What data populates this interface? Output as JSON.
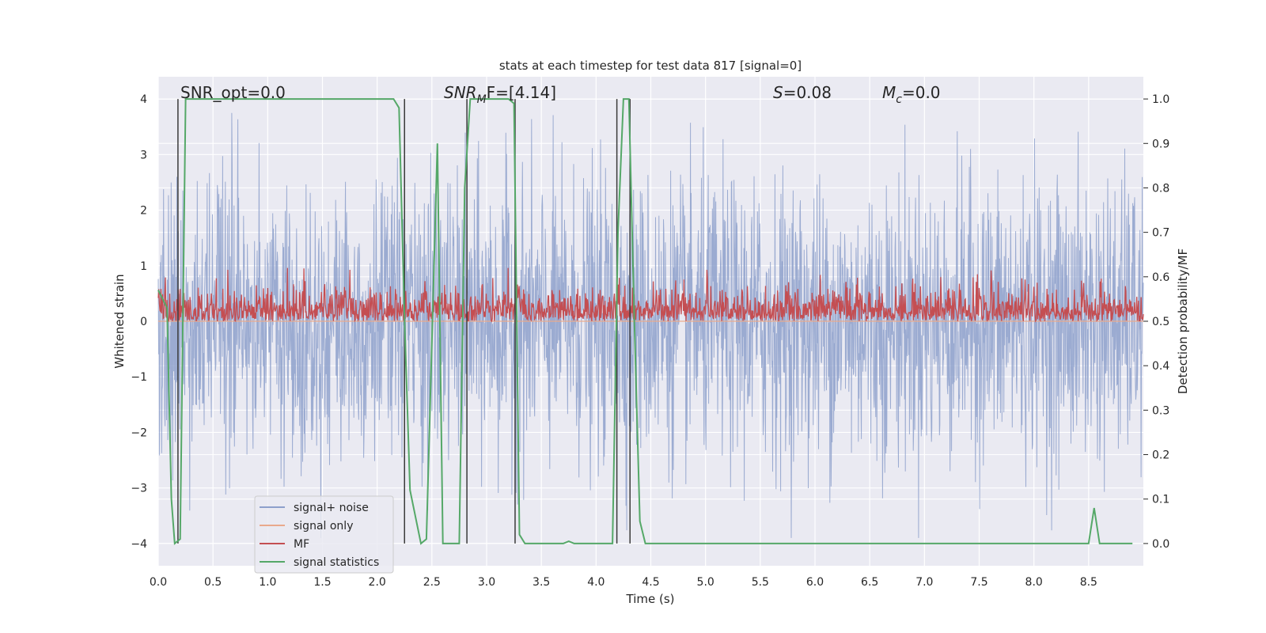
{
  "chart_data": {
    "type": "line",
    "title": "stats at each timestep for test data 817 [signal=0]",
    "xlabel": "Time (s)",
    "ylabel": "Whitened strain",
    "ylabel_right": "Detection probability/MF",
    "xlim": [
      0.0,
      9.0
    ],
    "ylim": [
      -4.4,
      4.4
    ],
    "ylim_right": [
      -0.05,
      1.05
    ],
    "xticks": [
      "0.0",
      "0.5",
      "1.0",
      "1.5",
      "2.0",
      "2.5",
      "3.0",
      "3.5",
      "4.0",
      "4.5",
      "5.0",
      "5.5",
      "6.0",
      "6.5",
      "7.0",
      "7.5",
      "8.0",
      "8.5"
    ],
    "yticks": [
      "−4",
      "−3",
      "−2",
      "−1",
      "0",
      "1",
      "2",
      "3",
      "4"
    ],
    "yticks_right": [
      "0.0",
      "0.1",
      "0.2",
      "0.3",
      "0.4",
      "0.5",
      "0.6",
      "0.7",
      "0.8",
      "0.9",
      "1.0"
    ],
    "grid": true,
    "legend_placement": "lower-left",
    "legend": [
      "signal+ noise",
      "signal only",
      "MF",
      "signal statistics"
    ],
    "annotations": {
      "snr_opt": "SNR_opt=0.0",
      "snr_mf_prefix": "SNR",
      "snr_mf_sub": "M",
      "snr_mf_suffix": "F=[4.14]",
      "s_var": "S",
      "s_value": "=0.08",
      "mc_var": "M",
      "mc_sub": "c",
      "mc_value": "=0.0"
    },
    "series": [
      {
        "name": "signal+ noise",
        "color": "#8da0cb",
        "kind": "noise",
        "amplitude_range": [
          -3.9,
          3.8
        ]
      },
      {
        "name": "signal only",
        "color": "#e9a98c",
        "values_constant": 0.0
      },
      {
        "name": "MF",
        "color": "#c44e52",
        "kind": "noise",
        "amplitude_range": [
          0.5,
          0.62
        ]
      },
      {
        "name": "signal statistics",
        "color": "#55a868",
        "x": [
          0.0,
          0.08,
          0.12,
          0.15,
          0.2,
          0.25,
          0.3,
          1.0,
          2.0,
          2.15,
          2.2,
          2.25,
          2.3,
          2.4,
          2.45,
          2.55,
          2.6,
          2.65,
          2.75,
          2.8,
          2.85,
          3.0,
          3.2,
          3.25,
          3.3,
          3.35,
          3.4,
          3.5,
          3.7,
          3.75,
          3.8,
          4.0,
          4.15,
          4.2,
          4.25,
          4.3,
          4.35,
          4.4,
          4.45,
          5.0,
          6.0,
          7.0,
          8.0,
          8.5,
          8.55,
          8.6,
          8.9
        ],
        "y": [
          0.57,
          0.53,
          0.1,
          0.0,
          0.01,
          1.0,
          1.0,
          1.0,
          1.0,
          1.0,
          0.98,
          0.5,
          0.12,
          0.0,
          0.01,
          0.9,
          0.0,
          0.0,
          0.0,
          0.8,
          1.0,
          1.0,
          1.0,
          0.99,
          0.02,
          0.0,
          0.0,
          0.0,
          0.0,
          0.005,
          0.0,
          0.0,
          0.0,
          0.7,
          1.0,
          1.0,
          0.5,
          0.05,
          0.0,
          0.0,
          0.0,
          0.0,
          0.0,
          0.0,
          0.08,
          0.0,
          0.0
        ]
      }
    ],
    "vertical_lines": [
      0.18,
      2.25,
      2.82,
      3.26,
      4.19,
      4.31
    ]
  }
}
